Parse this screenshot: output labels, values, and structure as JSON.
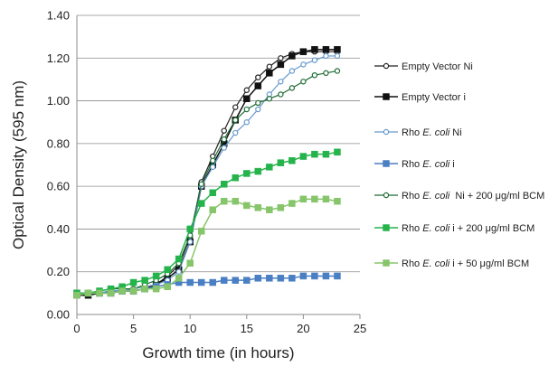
{
  "chart_data": {
    "type": "line",
    "xlabel": "Growth time (in hours)",
    "ylabel": "Optical Density (595 nm)",
    "xlim": [
      0,
      25
    ],
    "ylim": [
      0,
      1.4
    ],
    "x_ticks": [
      "0",
      "5",
      "10",
      "15",
      "20",
      "25"
    ],
    "y_ticks": [
      "0.00",
      "0.20",
      "0.40",
      "0.60",
      "0.80",
      "1.00",
      "1.20",
      "1.40"
    ],
    "grid": "horizontal",
    "legend_position": "right",
    "x": [
      0,
      1,
      2,
      3,
      4,
      5,
      6,
      7,
      8,
      9,
      10,
      11,
      12,
      13,
      14,
      15,
      16,
      17,
      18,
      19,
      20,
      21,
      22,
      23
    ],
    "series": [
      {
        "name_parts": [
          {
            "text": "Empty Vector Ni",
            "italic": false
          }
        ],
        "color": "#222222",
        "marker": "circle-open",
        "line_width": 1.2,
        "values": [
          0.09,
          0.09,
          0.1,
          0.1,
          0.11,
          0.11,
          0.12,
          0.14,
          0.18,
          0.23,
          0.36,
          0.62,
          0.74,
          0.86,
          0.97,
          1.05,
          1.11,
          1.16,
          1.2,
          1.22,
          1.23,
          1.23,
          1.23,
          1.23
        ]
      },
      {
        "name_parts": [
          {
            "text": "Empty Vector i",
            "italic": false
          }
        ],
        "color": "#111111",
        "marker": "square",
        "line_width": 1.5,
        "values": [
          0.09,
          0.09,
          0.1,
          0.1,
          0.11,
          0.11,
          0.12,
          0.14,
          0.17,
          0.21,
          0.34,
          0.6,
          0.7,
          0.8,
          0.91,
          1.01,
          1.07,
          1.13,
          1.17,
          1.21,
          1.23,
          1.24,
          1.24,
          1.24
        ]
      },
      {
        "name_parts": [
          {
            "text": "Rho ",
            "italic": false
          },
          {
            "text": "E. coli",
            "italic": true
          },
          {
            "text": " Ni",
            "italic": false
          }
        ],
        "color": "#6699cc",
        "marker": "circle-open",
        "line_width": 1.2,
        "values": [
          0.1,
          0.1,
          0.1,
          0.11,
          0.11,
          0.12,
          0.13,
          0.14,
          0.16,
          0.2,
          0.34,
          0.6,
          0.69,
          0.78,
          0.85,
          0.9,
          0.96,
          1.03,
          1.09,
          1.14,
          1.17,
          1.19,
          1.21,
          1.21
        ]
      },
      {
        "name_parts": [
          {
            "text": "Rho ",
            "italic": false
          },
          {
            "text": "E. coli",
            "italic": true
          },
          {
            "text": " i",
            "italic": false
          }
        ],
        "color": "#4a7fc4",
        "marker": "square",
        "line_width": 1.5,
        "values": [
          0.1,
          0.1,
          0.1,
          0.11,
          0.11,
          0.11,
          0.12,
          0.13,
          0.14,
          0.15,
          0.15,
          0.15,
          0.15,
          0.16,
          0.16,
          0.16,
          0.17,
          0.17,
          0.17,
          0.17,
          0.18,
          0.18,
          0.18,
          0.18
        ]
      },
      {
        "name_parts": [
          {
            "text": "Rho ",
            "italic": false
          },
          {
            "text": "E. coli",
            "italic": true
          },
          {
            "text": "  Ni + 200 μg/ml BCM",
            "italic": false
          }
        ],
        "color": "#1d6b34",
        "marker": "circle-open",
        "line_width": 1.2,
        "values": [
          0.09,
          0.1,
          0.11,
          0.12,
          0.12,
          0.12,
          0.14,
          0.16,
          0.19,
          0.24,
          0.37,
          0.61,
          0.72,
          0.82,
          0.91,
          0.96,
          0.99,
          1.01,
          1.03,
          1.06,
          1.09,
          1.12,
          1.13,
          1.14
        ]
      },
      {
        "name_parts": [
          {
            "text": "Rho ",
            "italic": false
          },
          {
            "text": "E. coli",
            "italic": true
          },
          {
            "text": " i + 200 μg/ml BCM",
            "italic": false
          }
        ],
        "color": "#25b34b",
        "marker": "square",
        "line_width": 1.5,
        "values": [
          0.1,
          0.1,
          0.11,
          0.12,
          0.13,
          0.15,
          0.16,
          0.18,
          0.21,
          0.26,
          0.4,
          0.52,
          0.57,
          0.61,
          0.64,
          0.66,
          0.67,
          0.69,
          0.71,
          0.72,
          0.74,
          0.75,
          0.75,
          0.76
        ]
      },
      {
        "name_parts": [
          {
            "text": "Rho ",
            "italic": false
          },
          {
            "text": "E. coli",
            "italic": true
          },
          {
            "text": " i + 50 μg/ml BCM",
            "italic": false
          }
        ],
        "color": "#86c56a",
        "marker": "square",
        "line_width": 1.5,
        "values": [
          0.09,
          0.1,
          0.1,
          0.1,
          0.11,
          0.11,
          0.12,
          0.12,
          0.13,
          0.17,
          0.24,
          0.39,
          0.49,
          0.53,
          0.53,
          0.51,
          0.5,
          0.49,
          0.5,
          0.52,
          0.54,
          0.54,
          0.54,
          0.53
        ]
      }
    ]
  }
}
